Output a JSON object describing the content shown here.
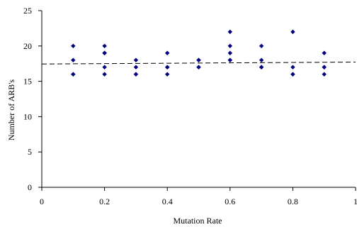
{
  "chart_data": {
    "type": "scatter",
    "title": "",
    "xlabel": "Mutation Rate",
    "ylabel": "Number of ARB's",
    "xlim": [
      0,
      1
    ],
    "ylim": [
      0,
      25
    ],
    "xticks": [
      0,
      0.2,
      0.4,
      0.6,
      0.8,
      1
    ],
    "xtick_labels": [
      "0",
      "0.2",
      "0.4",
      "0.6",
      "0.8",
      "1"
    ],
    "yticks": [
      0,
      5,
      10,
      15,
      20,
      25
    ],
    "ytick_labels": [
      "0",
      "5",
      "10",
      "15",
      "20",
      "25"
    ],
    "grid": false,
    "legend": "none",
    "marker_color": "#000080",
    "trendline": {
      "style": "dashed",
      "color": "#000000",
      "x": [
        0,
        1
      ],
      "y": [
        17.45,
        17.72
      ]
    },
    "points": [
      {
        "x": 0.1,
        "y": 20
      },
      {
        "x": 0.1,
        "y": 18
      },
      {
        "x": 0.1,
        "y": 16
      },
      {
        "x": 0.1,
        "y": 16
      },
      {
        "x": 0.2,
        "y": 20
      },
      {
        "x": 0.2,
        "y": 19
      },
      {
        "x": 0.2,
        "y": 19
      },
      {
        "x": 0.2,
        "y": 17
      },
      {
        "x": 0.2,
        "y": 16
      },
      {
        "x": 0.3,
        "y": 18
      },
      {
        "x": 0.3,
        "y": 17
      },
      {
        "x": 0.3,
        "y": 16
      },
      {
        "x": 0.3,
        "y": 16
      },
      {
        "x": 0.4,
        "y": 19
      },
      {
        "x": 0.4,
        "y": 17
      },
      {
        "x": 0.4,
        "y": 17
      },
      {
        "x": 0.4,
        "y": 16
      },
      {
        "x": 0.5,
        "y": 18
      },
      {
        "x": 0.5,
        "y": 18
      },
      {
        "x": 0.5,
        "y": 17
      },
      {
        "x": 0.5,
        "y": 17
      },
      {
        "x": 0.6,
        "y": 22
      },
      {
        "x": 0.6,
        "y": 20
      },
      {
        "x": 0.6,
        "y": 19
      },
      {
        "x": 0.6,
        "y": 18
      },
      {
        "x": 0.6,
        "y": 18
      },
      {
        "x": 0.7,
        "y": 20
      },
      {
        "x": 0.7,
        "y": 18
      },
      {
        "x": 0.7,
        "y": 17
      },
      {
        "x": 0.7,
        "y": 17
      },
      {
        "x": 0.8,
        "y": 22
      },
      {
        "x": 0.8,
        "y": 17
      },
      {
        "x": 0.8,
        "y": 16
      },
      {
        "x": 0.8,
        "y": 16
      },
      {
        "x": 0.9,
        "y": 19
      },
      {
        "x": 0.9,
        "y": 17
      },
      {
        "x": 0.9,
        "y": 17
      },
      {
        "x": 0.9,
        "y": 16
      }
    ]
  }
}
